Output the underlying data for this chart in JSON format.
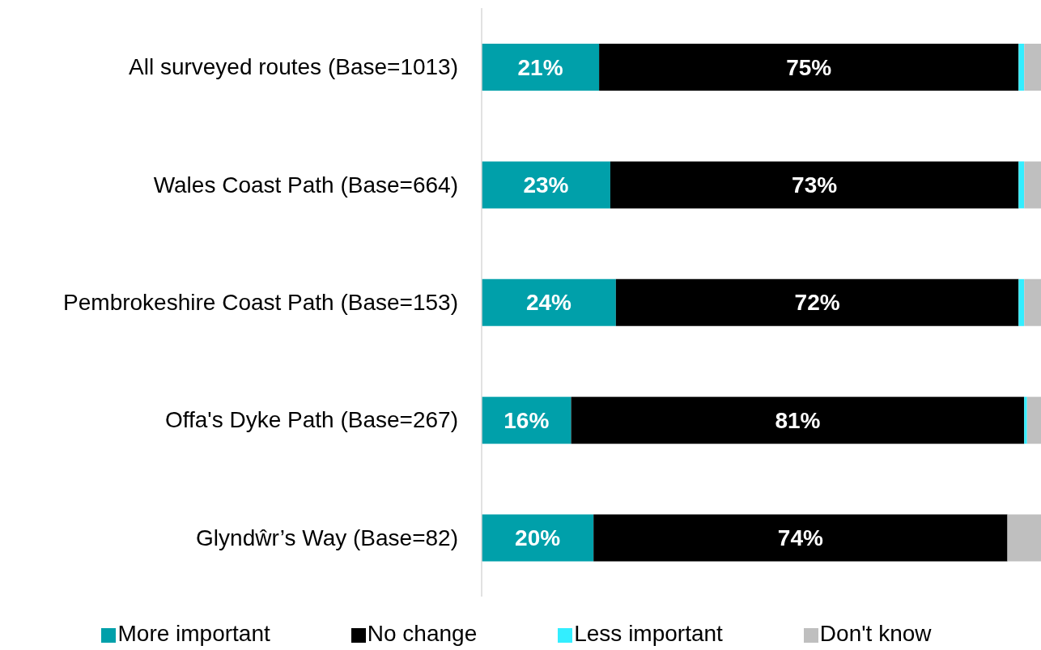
{
  "chart_data": {
    "type": "bar",
    "orientation": "horizontal",
    "stacked": true,
    "categories": [
      "All surveyed routes (Base=1013)",
      "Wales Coast Path (Base=664)",
      "Pembrokeshire Coast Path (Base=153)",
      "Offa's Dyke Path (Base=267)",
      "Glyndŵr’s Way (Base=82)"
    ],
    "series": [
      {
        "name": "More important",
        "color": "#00a0aa",
        "values": [
          21,
          23,
          24,
          16,
          20
        ],
        "value_labels": [
          "21%",
          "23%",
          "24%",
          "16%",
          "20%"
        ]
      },
      {
        "name": "No change",
        "color": "#000000",
        "values": [
          75,
          73,
          72,
          81,
          74
        ],
        "value_labels": [
          "75%",
          "73%",
          "72%",
          "81%",
          "74%"
        ]
      },
      {
        "name": "Less important",
        "color": "#33eeff",
        "values": [
          1,
          1,
          1,
          0.5,
          0
        ]
      },
      {
        "name": "Don't know",
        "color": "#bfbfbf",
        "values": [
          3,
          3,
          3,
          2.5,
          6
        ]
      }
    ],
    "legend": "bottom",
    "tick_labels": "y"
  }
}
